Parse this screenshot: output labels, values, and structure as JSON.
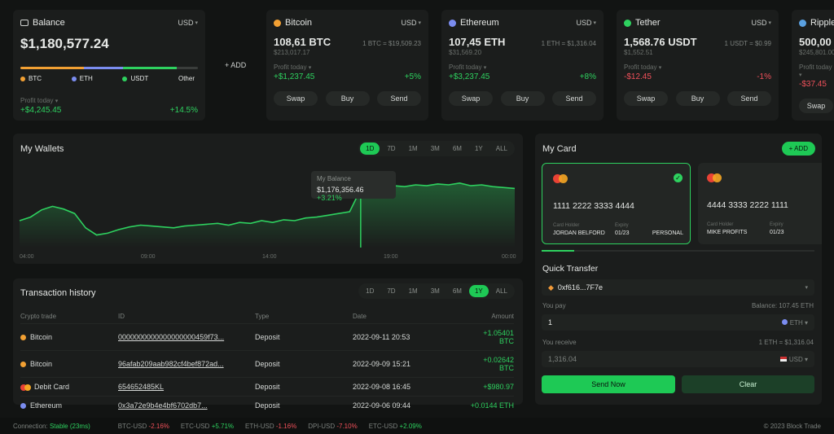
{
  "balance": {
    "label": "Balance",
    "currency": "USD",
    "amount": "$1,180,577.24",
    "add_label": "+ ADD",
    "legend": [
      {
        "name": "BTC",
        "color": "#f2a033"
      },
      {
        "name": "ETH",
        "color": "#7b8df0"
      },
      {
        "name": "USDT",
        "color": "#2ed15f"
      },
      {
        "name": "Other",
        "color": ""
      }
    ],
    "profit_label": "Profit today",
    "profit_value": "+$4,245.45",
    "profit_pct": "+14.5%"
  },
  "tickers": [
    {
      "name": "Bitcoin",
      "color": "#f2a033",
      "currency": "USD",
      "amount": "108,61 BTC",
      "rate": "1 BTC = $19,509.23",
      "usd": "$213,017.17",
      "profit_label": "Profit today",
      "profit_value": "+$1,237.45",
      "profit_pct": "+5%",
      "up": true,
      "swap": "Swap",
      "buy": "Buy",
      "send": "Send"
    },
    {
      "name": "Ethereum",
      "color": "#7b8df0",
      "currency": "USD",
      "amount": "107,45 ETH",
      "rate": "1 ETH = $1,316.04",
      "usd": "$31,569.20",
      "profit_label": "Profit today",
      "profit_value": "+$3,237.45",
      "profit_pct": "+8%",
      "up": true,
      "swap": "Swap",
      "buy": "Buy",
      "send": "Send"
    },
    {
      "name": "Tether",
      "color": "#2ed15f",
      "currency": "USD",
      "amount": "1,568.76 USDT",
      "rate": "1 USDT = $0.99",
      "usd": "$1,552.51",
      "profit_label": "Profit today",
      "profit_value": "-$12.45",
      "profit_pct": "-1%",
      "up": false,
      "swap": "Swap",
      "buy": "Buy",
      "send": "Send"
    },
    {
      "name": "Ripple",
      "color": "#5aa0e0",
      "currency": "",
      "amount": "500,00",
      "rate": "",
      "usd": "$245,801.00",
      "profit_label": "Profit today",
      "profit_value": "-$37.45",
      "profit_pct": "",
      "up": false,
      "swap": "Swap",
      "buy": "",
      "send": ""
    }
  ],
  "wallets": {
    "title": "My Wallets",
    "tabs": [
      "1D",
      "7D",
      "1M",
      "3M",
      "6M",
      "1Y",
      "ALL"
    ],
    "active_tab": "1D",
    "tooltip_label": "My Balance",
    "tooltip_value": "$1,176,356.46",
    "tooltip_pct": "+3.21%",
    "x_labels": [
      "04:00",
      "09:00",
      "14:00",
      "19:00",
      "00:00"
    ]
  },
  "chart_data": {
    "type": "area",
    "x_ticks": [
      "04:00",
      "09:00",
      "14:00",
      "19:00",
      "00:00"
    ],
    "values": [
      60,
      64,
      72,
      76,
      73,
      68,
      52,
      44,
      46,
      50,
      53,
      55,
      54,
      53,
      52,
      54,
      55,
      56,
      57,
      55,
      58,
      57,
      60,
      58,
      61,
      60,
      63,
      64,
      66,
      68,
      70,
      95,
      96,
      97,
      99,
      98,
      100,
      99,
      101,
      100,
      102,
      99,
      100,
      98,
      97,
      96
    ],
    "highlight_index": 31,
    "color": "#2ed15f"
  },
  "transactions": {
    "title": "Transaction history",
    "tabs": [
      "1D",
      "7D",
      "1M",
      "3M",
      "6M",
      "1Y",
      "ALL"
    ],
    "active_tab": "1Y",
    "headers": [
      "Crypto trade",
      "ID",
      "Type",
      "Date",
      "Amount"
    ],
    "rows": [
      {
        "asset": "Bitcoin",
        "color": "#f2a033",
        "id": "0000000000000000000459f73...",
        "type": "Deposit",
        "date": "2022-09-11 20:53",
        "amount": "+1.05401 BTC"
      },
      {
        "asset": "Bitcoin",
        "color": "#f2a033",
        "id": "96afab209aab982cf4bef872ad...",
        "type": "Deposit",
        "date": "2022-09-09 15:21",
        "amount": "+0.02642 BTC"
      },
      {
        "asset": "Debit Card",
        "color": "mastercard",
        "id": "654652485KL",
        "type": "Deposit",
        "date": "2022-09-08 16:45",
        "amount": "+$980.97"
      },
      {
        "asset": "Ethereum",
        "color": "#7b8df0",
        "id": "0x3a72e9b4e4bf6702db7...",
        "type": "Deposit",
        "date": "2022-09-06 09:44",
        "amount": "+0.0144 ETH"
      }
    ]
  },
  "my_card": {
    "title": "My Card",
    "add_label": "+ ADD",
    "cards": [
      {
        "number": "1111 2222 3333 4444",
        "holder_label": "Card Holder",
        "holder": "JORDAN BELFORD",
        "expiry_label": "Expiry",
        "expiry": "01/23",
        "tag": "PERSONAL"
      },
      {
        "number": "4444 3333 2222 1111",
        "holder_label": "Card Holder",
        "holder": "MIKE PROFITS",
        "expiry_label": "Expiry",
        "expiry": "01/23",
        "tag": ""
      }
    ]
  },
  "quick_transfer": {
    "title": "Quick Transfer",
    "address": "0xf616...7F7e",
    "you_pay_label": "You pay",
    "balance_note": "Balance: 107.45 ETH",
    "pay_value": "1",
    "pay_currency": "ETH",
    "you_receive_label": "You receive",
    "rate_note": "1 ETH = $1,316.04",
    "receive_value": "1,316.04",
    "receive_currency": "USD",
    "send_label": "Send Now",
    "clear_label": "Clear"
  },
  "status_bar": {
    "connection_label": "Connection:",
    "connection_value": "Stable (23ms)",
    "tickers": [
      {
        "pair": "BTC-USD",
        "change": "-2.16%",
        "up": false
      },
      {
        "pair": "ETC-USD",
        "change": "+5.71%",
        "up": true
      },
      {
        "pair": "ETH-USD",
        "change": "-1.16%",
        "up": false
      },
      {
        "pair": "DPI-USD",
        "change": "-7.10%",
        "up": false
      },
      {
        "pair": "ETC-USD",
        "change": "+2.09%",
        "up": true
      }
    ],
    "copyright": "© 2023 Block Trade"
  }
}
